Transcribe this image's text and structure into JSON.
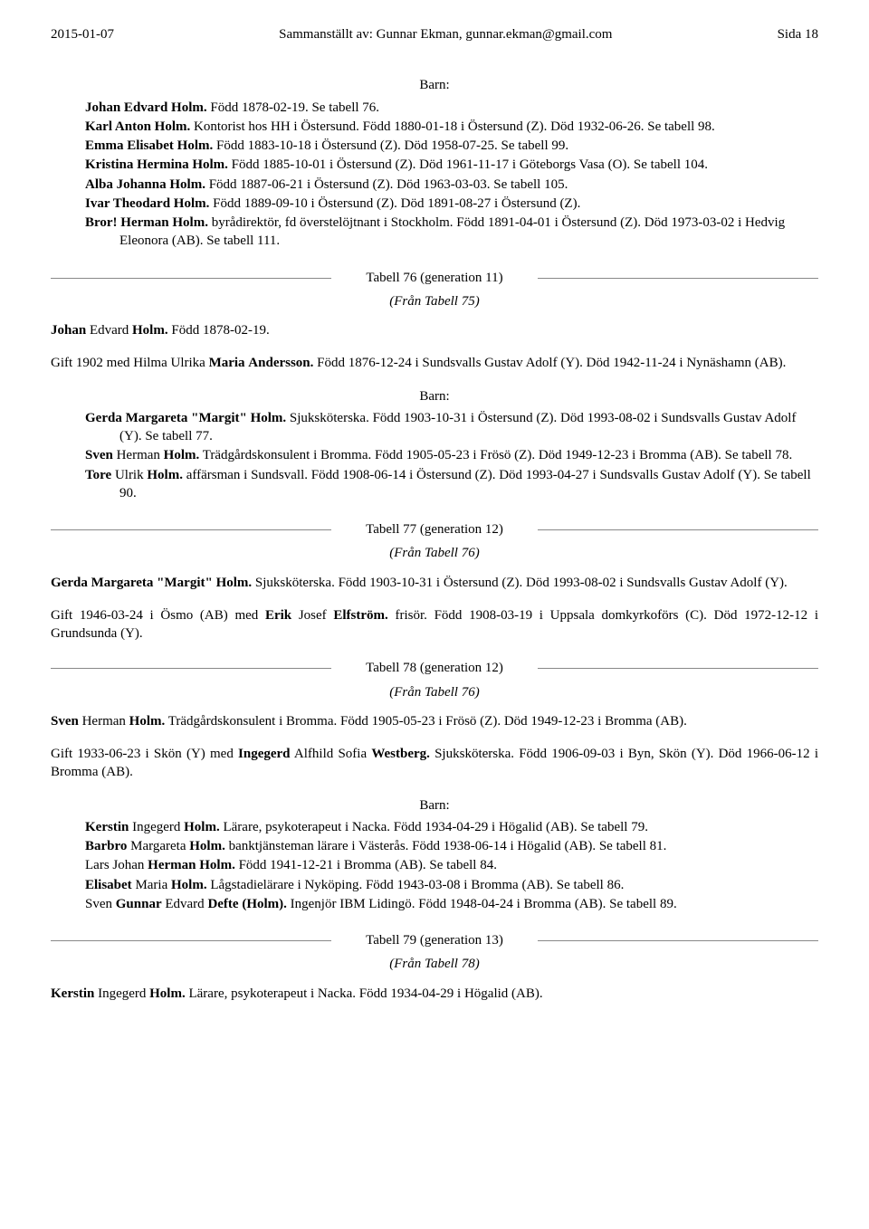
{
  "header": {
    "date": "2015-01-07",
    "compiled_by": "Sammanställt av: Gunnar Ekman, gunnar.ekman@gmail.com",
    "page_label": "Sida 18"
  },
  "barn_label": "Barn:",
  "block1": {
    "p1a": "Johan Edvard Holm.",
    "p1b": " Född 1878-02-19. Se tabell 76.",
    "p2a": "Karl Anton Holm.",
    "p2b": " Kontorist hos HH i Östersund. Född 1880-01-18 i Östersund (Z). Död 1932-06-26. Se tabell 98.",
    "p3a": "Emma Elisabet Holm.",
    "p3b": " Född 1883-10-18 i Östersund (Z). Död 1958-07-25. Se tabell 99.",
    "p4a": "Kristina Hermina Holm.",
    "p4b": " Född 1885-10-01 i Östersund (Z). Död 1961-11-17 i Göteborgs Vasa (O). Se tabell 104.",
    "p5a": "Alba Johanna Holm.",
    "p5b": " Född 1887-06-21 i Östersund (Z). Död 1963-03-03. Se tabell 105.",
    "p6a": "Ivar Theodard Holm.",
    "p6b": " Född 1889-09-10 i Östersund (Z). Död 1891-08-27 i Östersund (Z).",
    "p7a": "Bror! Herman Holm.",
    "p7b": " byrådirektör, fd överstelöjtnant i Stockholm. Född 1891-04-01 i Östersund (Z). Död 1973-03-02 i Hedvig Eleonora (AB). Se tabell 111."
  },
  "div76": {
    "title": "Tabell 76 (generation 11)",
    "from": "(Från Tabell 75)",
    "line_left_w": 310,
    "line_right_w": 310
  },
  "sec76": {
    "p1a": "Johan",
    "p1b": " Edvard ",
    "p1c": "Holm.",
    "p1d": " Född 1878-02-19.",
    "p2a": "Gift 1902 med Hilma Ulrika ",
    "p2b": "Maria",
    "p2c": " ",
    "p2d": "Andersson.",
    "p2e": " Född 1876-12-24 i Sundsvalls Gustav Adolf (Y). Död 1942-11-24 i Nynäshamn (AB).",
    "c1a": "Gerda Margareta \"Margit\" Holm.",
    "c1b": " Sjuksköterska. Född 1903-10-31 i Östersund (Z). Död 1993-08-02 i Sundsvalls Gustav Adolf (Y). Se tabell 77.",
    "c2a": "Sven",
    "c2b": " Herman ",
    "c2c": "Holm.",
    "c2d": " Trädgårdskonsulent i Bromma. Född 1905-05-23 i Frösö (Z). Död 1949-12-23 i Bromma (AB). Se tabell 78.",
    "c3a": "Tore",
    "c3b": " Ulrik ",
    "c3c": "Holm.",
    "c3d": " affärsman i Sundsvall. Född 1908-06-14 i Östersund (Z). Död 1993-04-27 i Sundsvalls Gustav Adolf (Y). Se tabell 90."
  },
  "div77": {
    "title": "Tabell 77 (generation 12)",
    "from": "(Från Tabell 76)",
    "line_left_w": 310,
    "line_right_w": 310
  },
  "sec77": {
    "p1a": "Gerda Margareta \"Margit\" Holm.",
    "p1b": " Sjuksköterska. Född 1903-10-31 i Östersund (Z). Död 1993-08-02 i Sundsvalls Gustav Adolf (Y).",
    "p2a": "Gift 1946-03-24 i Ösmo (AB) med ",
    "p2b": "Erik",
    "p2c": " Josef ",
    "p2d": "Elfström.",
    "p2e": " frisör. Född 1908-03-19 i Uppsala domkyrkoförs (C). Död 1972-12-12 i Grundsunda (Y)."
  },
  "div78": {
    "title": "Tabell 78 (generation 12)",
    "from": "(Från Tabell 76)",
    "line_left_w": 310,
    "line_right_w": 310
  },
  "sec78": {
    "p1a": "Sven",
    "p1b": " Herman ",
    "p1c": "Holm.",
    "p1d": " Trädgårdskonsulent i Bromma. Född 1905-05-23 i Frösö (Z). Död 1949-12-23 i Bromma (AB).",
    "p2a": "Gift 1933-06-23 i Skön (Y) med ",
    "p2b": "Ingegerd",
    "p2c": " Alfhild Sofia ",
    "p2d": "Westberg.",
    "p2e": " Sjuksköterska. Född 1906-09-03 i Byn, Skön (Y). Död 1966-06-12 i Bromma (AB).",
    "c1a": "Kerstin",
    "c1b": " Ingegerd ",
    "c1c": "Holm.",
    "c1d": " Lärare, psykoterapeut i Nacka. Född 1934-04-29 i Högalid (AB). Se tabell 79.",
    "c2a": "Barbro",
    "c2b": " Margareta ",
    "c2c": "Holm.",
    "c2d": " banktjänsteman lärare i Västerås. Född 1938-06-14 i Högalid (AB). Se tabell 81.",
    "c3a": "Lars Johan ",
    "c3b": "Herman",
    "c3c": " ",
    "c3d": "Holm.",
    "c3e": " Född 1941-12-21 i Bromma (AB). Se tabell 84.",
    "c4a": "Elisabet",
    "c4b": " Maria ",
    "c4c": "Holm.",
    "c4d": " Lågstadielärare i Nyköping. Född 1943-03-08 i Bromma (AB). Se tabell 86.",
    "c5a": "Sven ",
    "c5b": "Gunnar",
    "c5c": " Edvard ",
    "c5d": "Defte (Holm).",
    "c5e": " Ingenjör IBM Lidingö. Född 1948-04-24 i Bromma (AB). Se tabell 89."
  },
  "div79": {
    "title": "Tabell 79 (generation 13)",
    "from": "(Från Tabell 78)",
    "line_left_w": 310,
    "line_right_w": 310
  },
  "sec79": {
    "p1a": "Kerstin",
    "p1b": " Ingegerd ",
    "p1c": "Holm.",
    "p1d": " Lärare, psykoterapeut i Nacka. Född 1934-04-29 i Högalid (AB)."
  }
}
